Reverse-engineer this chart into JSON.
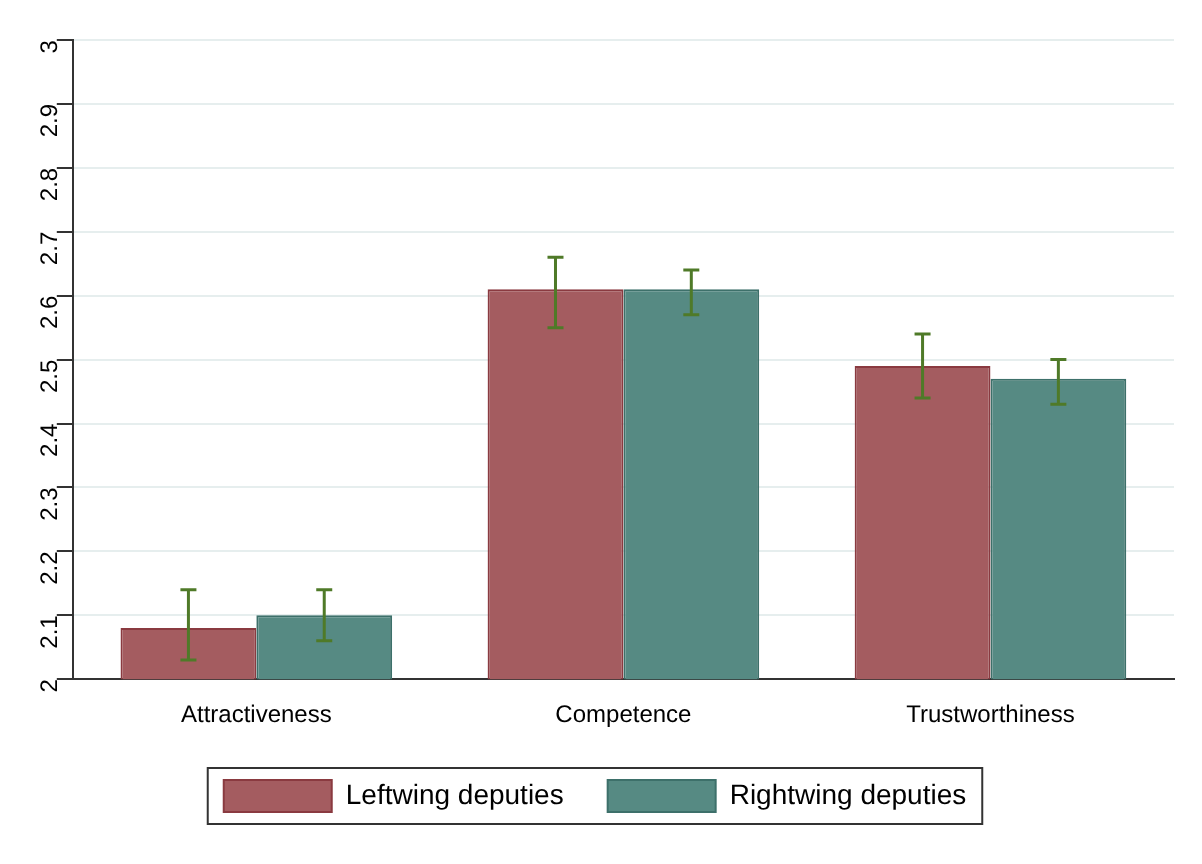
{
  "chart_data": {
    "type": "bar",
    "categories": [
      "Attractiveness",
      "Competence",
      "Trustworthiness"
    ],
    "series": [
      {
        "name": "Leftwing deputies",
        "color": "#a45c60",
        "values": [
          2.08,
          2.61,
          2.49
        ],
        "errors": [
          [
            2.03,
            2.14
          ],
          [
            2.55,
            2.66
          ],
          [
            2.44,
            2.54
          ]
        ]
      },
      {
        "name": "Rightwing deputies",
        "color": "#568a83",
        "values": [
          2.1,
          2.61,
          2.47
        ],
        "errors": [
          [
            2.06,
            2.14
          ],
          [
            2.57,
            2.64
          ],
          [
            2.43,
            2.5
          ]
        ]
      }
    ],
    "ylim": [
      2,
      3
    ],
    "yticks": [
      2,
      2.1,
      2.2,
      2.3,
      2.4,
      2.5,
      2.6,
      2.7,
      2.8,
      2.9,
      3
    ],
    "grid": "y",
    "legend": "bottom"
  }
}
